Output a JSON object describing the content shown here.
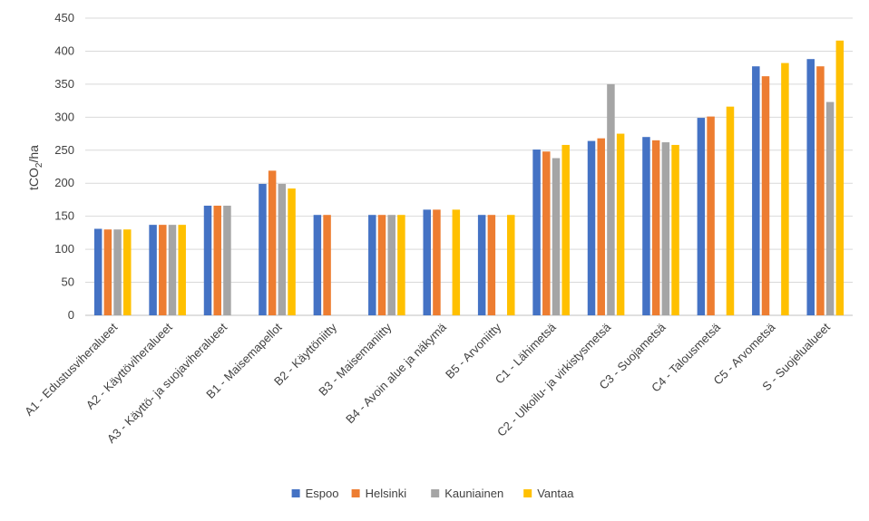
{
  "chart_data": {
    "type": "bar",
    "title": "",
    "xlabel": "",
    "ylabel_main": "tCO",
    "ylabel_sub": "2",
    "ylabel_tail": "/ha",
    "ylim": [
      0,
      450
    ],
    "yticks": [
      0,
      50,
      100,
      150,
      200,
      250,
      300,
      350,
      400,
      450
    ],
    "ytick_labels": [
      "0",
      "50",
      "100",
      "150",
      "200",
      "250",
      "300",
      "350",
      "400",
      "450"
    ],
    "grid": true,
    "legend_position": "bottom",
    "categories": [
      "A1 - Edustusviheralueet",
      "A2 - Käyttöviheralueet",
      "A3 - Käyttö- ja suojaviheralueet",
      "B1 - Maisemapellot",
      "B2 - Käyttöniitty",
      "B3 - Maisemaniitty",
      "B4 - Avoin alue ja näkymä",
      "B5 - Arvoniitty",
      "C1 - Lähimetsä",
      "C2 - Ulkoilu- ja virkistysmetsä",
      "C3 - Suojametsä",
      "C4 - Talousmetsä",
      "C5 - Arvometsä",
      "S - Suojelualueet"
    ],
    "series": [
      {
        "name": "Espoo",
        "color": "#4472C4",
        "values": [
          131,
          137,
          166,
          199,
          152,
          152,
          160,
          152,
          251,
          264,
          270,
          299,
          377,
          388
        ]
      },
      {
        "name": "Helsinki",
        "color": "#ED7D31",
        "values": [
          130,
          137,
          166,
          219,
          152,
          152,
          160,
          152,
          248,
          268,
          265,
          301,
          362,
          377
        ]
      },
      {
        "name": "Kauniainen",
        "color": "#A5A5A5",
        "values": [
          130,
          137,
          166,
          199,
          null,
          152,
          null,
          null,
          238,
          350,
          262,
          null,
          null,
          323
        ]
      },
      {
        "name": "Vantaa",
        "color": "#FFC000",
        "values": [
          130,
          137,
          null,
          192,
          null,
          152,
          160,
          152,
          258,
          275,
          258,
          316,
          382,
          416
        ]
      }
    ]
  }
}
